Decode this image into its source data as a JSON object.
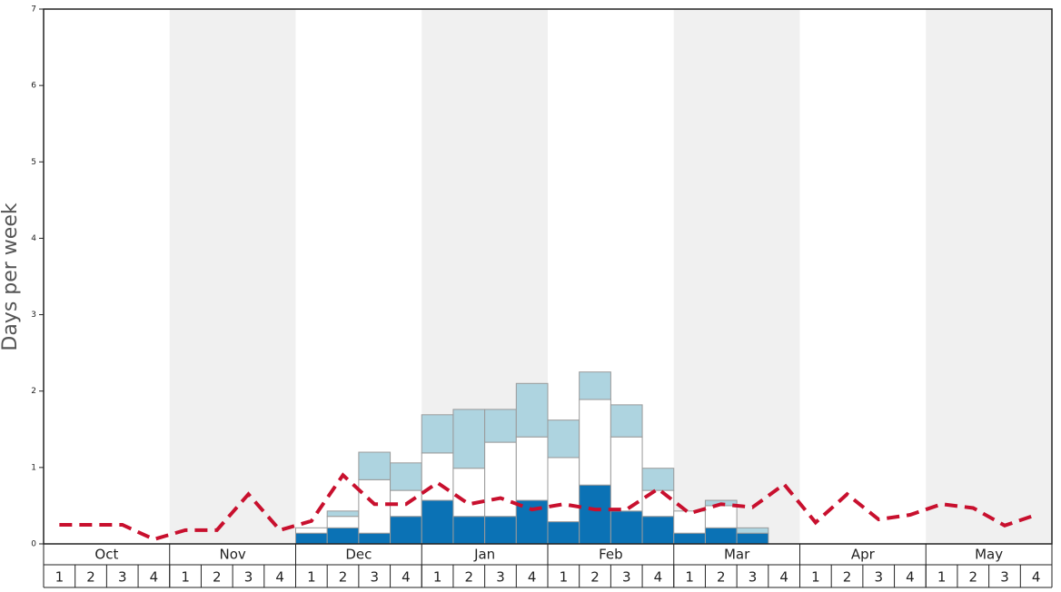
{
  "chart_data": {
    "type": "bar",
    "y_label": "Days per week",
    "months": [
      "Oct",
      "Nov",
      "Dec",
      "Jan",
      "Feb",
      "Mar",
      "Apr",
      "May"
    ],
    "weeks": [
      "1",
      "2",
      "3",
      "4",
      "1",
      "2",
      "3",
      "4",
      "1",
      "2",
      "3",
      "4",
      "1",
      "2",
      "3",
      "4",
      "1",
      "2",
      "3",
      "4",
      "1",
      "2",
      "3",
      "4",
      "1",
      "2",
      "3",
      "4",
      "1",
      "2",
      "3",
      "4"
    ],
    "ylim": [
      0,
      7
    ],
    "yticks": [
      0,
      1,
      2,
      3,
      4,
      5,
      6,
      7
    ],
    "series": [
      {
        "color": "#0b72b5",
        "values": [
          0,
          0,
          0,
          0,
          0,
          0,
          0,
          0,
          0.14,
          0.21,
          0.14,
          0.36,
          0.57,
          0.36,
          0.36,
          0.57,
          0.29,
          0.77,
          0.43,
          0.36,
          0.14,
          0.21,
          0.14,
          0,
          0,
          0,
          0,
          0,
          0,
          0,
          0,
          0
        ]
      },
      {
        "color": "#ffffff",
        "values": [
          0,
          0,
          0,
          0,
          0,
          0,
          0,
          0,
          0.07,
          0.15,
          0.7,
          0.34,
          0.62,
          0.63,
          0.97,
          0.83,
          0.84,
          1.12,
          0.97,
          0.34,
          0.29,
          0.29,
          0,
          0,
          0,
          0,
          0,
          0,
          0,
          0,
          0,
          0
        ]
      },
      {
        "color": "#aed4e0",
        "values": [
          0,
          0,
          0,
          0,
          0,
          0,
          0,
          0,
          0,
          0.07,
          0.36,
          0.36,
          0.5,
          0.77,
          0.43,
          0.7,
          0.49,
          0.36,
          0.42,
          0.29,
          0,
          0.07,
          0.07,
          0,
          0,
          0,
          0,
          0,
          0,
          0,
          0,
          0
        ]
      }
    ],
    "line": {
      "color": "#c8102e",
      "values": [
        0.25,
        0.25,
        0.25,
        0.06,
        0.18,
        0.18,
        0.65,
        0.18,
        0.3,
        0.9,
        0.52,
        0.52,
        0.8,
        0.52,
        0.6,
        0.45,
        0.52,
        0.45,
        0.45,
        0.72,
        0.4,
        0.52,
        0.48,
        0.78,
        0.28,
        0.65,
        0.32,
        0.38,
        0.52,
        0.47,
        0.24,
        0.38
      ]
    }
  }
}
